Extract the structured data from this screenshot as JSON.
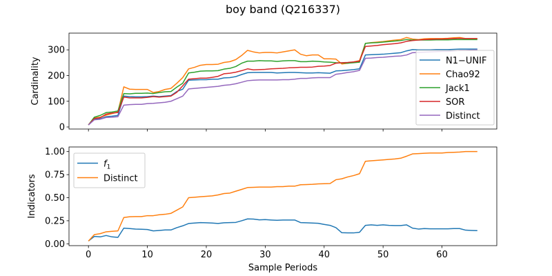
{
  "figure": {
    "title": "boy band (Q216337)"
  },
  "chart_data": [
    {
      "type": "line",
      "ylabel": "Cardinality",
      "xlabel": "",
      "xlim": [
        -3.3,
        69.3
      ],
      "ylim": [
        -8,
        365
      ],
      "xticks": [
        0,
        10,
        20,
        30,
        40,
        50,
        60
      ],
      "yticks": [
        0,
        100,
        200,
        300
      ],
      "show_xtick_labels": false,
      "grid": false,
      "legend": "right",
      "series": [
        {
          "name": "N1−UNIF",
          "color": "#1f77b4",
          "x": [
            0,
            1,
            2,
            3,
            4,
            5,
            6,
            7,
            8,
            9,
            10,
            11,
            12,
            13,
            14,
            15,
            16,
            17,
            18,
            19,
            20,
            21,
            22,
            23,
            24,
            25,
            26,
            27,
            28,
            29,
            30,
            31,
            32,
            33,
            34,
            35,
            36,
            37,
            38,
            39,
            40,
            41,
            42,
            43,
            44,
            45,
            46,
            47,
            48,
            49,
            50,
            51,
            52,
            53,
            54,
            55,
            56,
            57,
            58,
            59,
            60,
            61,
            62,
            63,
            64,
            65,
            66
          ],
          "values": [
            8,
            30,
            32,
            40,
            42,
            45,
            120,
            118,
            117,
            117,
            118,
            120,
            118,
            120,
            122,
            138,
            147,
            182,
            183,
            184,
            184,
            186,
            186,
            191,
            192,
            196,
            204,
            211,
            212,
            212,
            212,
            212,
            210,
            211,
            212,
            212,
            211,
            210,
            210,
            211,
            210,
            209,
            218,
            219,
            221,
            223,
            226,
            280,
            281,
            282,
            283,
            285,
            287,
            289,
            296,
            301,
            300,
            300,
            300,
            301,
            301,
            301,
            302,
            303,
            303,
            303,
            303
          ]
        },
        {
          "name": "Chao92",
          "color": "#ff7f0e",
          "x": [
            0,
            1,
            2,
            3,
            4,
            5,
            6,
            7,
            8,
            9,
            10,
            11,
            12,
            13,
            14,
            15,
            16,
            17,
            18,
            19,
            20,
            21,
            22,
            23,
            24,
            25,
            26,
            27,
            28,
            29,
            30,
            31,
            32,
            33,
            34,
            35,
            36,
            37,
            38,
            39,
            40,
            41,
            42,
            43,
            44,
            45,
            46,
            47,
            48,
            49,
            50,
            51,
            52,
            53,
            54,
            55,
            56,
            57,
            58,
            59,
            60,
            61,
            62,
            63,
            64,
            65,
            66
          ],
          "values": [
            8,
            35,
            38,
            46,
            52,
            58,
            156,
            147,
            146,
            146,
            146,
            134,
            138,
            146,
            150,
            170,
            192,
            226,
            232,
            240,
            243,
            243,
            244,
            251,
            254,
            262,
            278,
            298,
            292,
            288,
            290,
            290,
            288,
            292,
            296,
            300,
            283,
            277,
            280,
            280,
            265,
            265,
            264,
            245,
            248,
            253,
            258,
            325,
            328,
            330,
            332,
            335,
            338,
            340,
            348,
            342,
            340,
            343,
            344,
            344,
            344,
            345,
            347,
            348,
            344,
            344,
            344
          ]
        },
        {
          "name": "Jack1",
          "color": "#2ca02c",
          "x": [
            0,
            1,
            2,
            3,
            4,
            5,
            6,
            7,
            8,
            9,
            10,
            11,
            12,
            13,
            14,
            15,
            16,
            17,
            18,
            19,
            20,
            21,
            22,
            23,
            24,
            25,
            26,
            27,
            28,
            29,
            30,
            31,
            32,
            33,
            34,
            35,
            36,
            37,
            38,
            39,
            40,
            41,
            42,
            43,
            44,
            45,
            46,
            47,
            48,
            49,
            50,
            51,
            52,
            53,
            54,
            55,
            56,
            57,
            58,
            59,
            60,
            61,
            62,
            63,
            64,
            65,
            66
          ],
          "values": [
            8,
            38,
            45,
            56,
            58,
            62,
            130,
            129,
            131,
            131,
            132,
            130,
            134,
            137,
            138,
            155,
            170,
            210,
            213,
            217,
            218,
            218,
            219,
            225,
            228,
            235,
            248,
            256,
            256,
            258,
            257,
            257,
            255,
            257,
            258,
            258,
            254,
            254,
            256,
            255,
            253,
            252,
            250,
            249,
            248,
            250,
            252,
            325,
            327,
            328,
            330,
            332,
            334,
            336,
            340,
            338,
            338,
            338,
            338,
            339,
            339,
            339,
            340,
            340,
            340,
            340,
            340
          ]
        },
        {
          "name": "SOR",
          "color": "#d62728",
          "x": [
            0,
            1,
            2,
            3,
            4,
            5,
            6,
            7,
            8,
            9,
            10,
            11,
            12,
            13,
            14,
            15,
            16,
            17,
            18,
            19,
            20,
            21,
            22,
            23,
            24,
            25,
            26,
            27,
            28,
            29,
            30,
            31,
            32,
            33,
            34,
            35,
            36,
            37,
            38,
            39,
            40,
            41,
            42,
            43,
            44,
            45,
            46,
            47,
            48,
            49,
            50,
            51,
            52,
            53,
            54,
            55,
            56,
            57,
            58,
            59,
            60,
            61,
            62,
            63,
            64,
            65,
            66
          ],
          "values": [
            8,
            33,
            36,
            50,
            54,
            56,
            116,
            113,
            113,
            113,
            115,
            118,
            116,
            118,
            120,
            135,
            160,
            186,
            188,
            190,
            190,
            193,
            197,
            207,
            209,
            213,
            219,
            226,
            222,
            223,
            224,
            226,
            227,
            228,
            230,
            231,
            232,
            232,
            233,
            236,
            237,
            239,
            248,
            250,
            251,
            253,
            256,
            313,
            315,
            317,
            320,
            322,
            324,
            327,
            333,
            336,
            338,
            340,
            341,
            342,
            342,
            343,
            344,
            345,
            344,
            344,
            344
          ]
        },
        {
          "name": "Distinct",
          "color": "#9467bd",
          "x": [
            0,
            1,
            2,
            3,
            4,
            5,
            6,
            7,
            8,
            9,
            10,
            11,
            12,
            13,
            14,
            15,
            16,
            17,
            18,
            19,
            20,
            21,
            22,
            23,
            24,
            25,
            26,
            27,
            28,
            29,
            30,
            31,
            32,
            33,
            34,
            35,
            36,
            37,
            38,
            39,
            40,
            41,
            42,
            43,
            44,
            45,
            46,
            47,
            48,
            49,
            50,
            51,
            52,
            53,
            54,
            55,
            56,
            57,
            58,
            59,
            60,
            61,
            62,
            63,
            64,
            65,
            66
          ],
          "values": [
            8,
            28,
            30,
            37,
            38,
            40,
            85,
            87,
            88,
            88,
            91,
            92,
            94,
            96,
            100,
            110,
            120,
            148,
            150,
            152,
            154,
            156,
            158,
            162,
            164,
            168,
            174,
            180,
            182,
            183,
            183,
            183,
            183,
            184,
            184,
            186,
            189,
            189,
            191,
            192,
            192,
            192,
            205,
            208,
            212,
            215,
            220,
            267,
            268,
            270,
            271,
            273,
            275,
            276,
            280,
            289,
            290,
            291,
            292,
            293,
            294,
            294,
            296,
            298,
            298,
            299,
            300
          ]
        }
      ]
    },
    {
      "type": "line",
      "ylabel": "Indicators",
      "xlabel": "Sample Periods",
      "xlim": [
        -3.3,
        69.3
      ],
      "ylim": [
        -0.02,
        1.05
      ],
      "xticks": [
        0,
        10,
        20,
        30,
        40,
        50,
        60
      ],
      "yticks": [
        "0.00",
        "0.25",
        "0.50",
        "0.75",
        "1.00"
      ],
      "show_xtick_labels": true,
      "grid": false,
      "legend": "top-left",
      "series": [
        {
          "name": "f1",
          "color": "#1f77b4",
          "x": [
            0,
            1,
            2,
            3,
            4,
            5,
            6,
            7,
            8,
            9,
            10,
            11,
            12,
            13,
            14,
            15,
            16,
            17,
            18,
            19,
            20,
            21,
            22,
            23,
            24,
            25,
            26,
            27,
            28,
            29,
            30,
            31,
            32,
            33,
            34,
            35,
            36,
            37,
            38,
            39,
            40,
            41,
            42,
            43,
            44,
            45,
            46,
            47,
            48,
            49,
            50,
            51,
            52,
            53,
            54,
            55,
            56,
            57,
            58,
            59,
            60,
            61,
            62,
            63,
            64,
            65,
            66
          ],
          "values": [
            0.03,
            0.08,
            0.075,
            0.09,
            0.075,
            0.07,
            0.17,
            0.165,
            0.16,
            0.158,
            0.155,
            0.14,
            0.145,
            0.15,
            0.15,
            0.175,
            0.195,
            0.22,
            0.225,
            0.23,
            0.228,
            0.225,
            0.22,
            0.228,
            0.23,
            0.232,
            0.25,
            0.27,
            0.268,
            0.26,
            0.262,
            0.258,
            0.255,
            0.258,
            0.258,
            0.258,
            0.23,
            0.228,
            0.225,
            0.222,
            0.21,
            0.2,
            0.175,
            0.12,
            0.118,
            0.118,
            0.125,
            0.2,
            0.205,
            0.2,
            0.205,
            0.2,
            0.198,
            0.198,
            0.205,
            0.17,
            0.16,
            0.165,
            0.162,
            0.162,
            0.162,
            0.162,
            0.165,
            0.165,
            0.148,
            0.145,
            0.143
          ]
        },
        {
          "name": "Distinct",
          "color": "#ff7f0e",
          "x": [
            0,
            1,
            2,
            3,
            4,
            5,
            6,
            7,
            8,
            9,
            10,
            11,
            12,
            13,
            14,
            15,
            16,
            17,
            18,
            19,
            20,
            21,
            22,
            23,
            24,
            25,
            26,
            27,
            28,
            29,
            30,
            31,
            32,
            33,
            34,
            35,
            36,
            37,
            38,
            39,
            40,
            41,
            42,
            43,
            44,
            45,
            46,
            47,
            48,
            49,
            50,
            51,
            52,
            53,
            54,
            55,
            56,
            57,
            58,
            59,
            60,
            61,
            62,
            63,
            64,
            65,
            66
          ],
          "values": [
            0.03,
            0.1,
            0.11,
            0.13,
            0.135,
            0.14,
            0.285,
            0.293,
            0.295,
            0.295,
            0.305,
            0.305,
            0.315,
            0.32,
            0.33,
            0.365,
            0.4,
            0.5,
            0.505,
            0.51,
            0.515,
            0.52,
            0.53,
            0.545,
            0.55,
            0.57,
            0.59,
            0.61,
            0.612,
            0.615,
            0.615,
            0.615,
            0.62,
            0.62,
            0.625,
            0.625,
            0.64,
            0.642,
            0.645,
            0.65,
            0.652,
            0.653,
            0.695,
            0.705,
            0.725,
            0.74,
            0.76,
            0.895,
            0.9,
            0.905,
            0.91,
            0.915,
            0.92,
            0.928,
            0.95,
            0.975,
            0.978,
            0.982,
            0.985,
            0.985,
            0.985,
            0.99,
            0.992,
            0.995,
            1.0,
            1.0,
            1.0
          ]
        }
      ]
    }
  ]
}
